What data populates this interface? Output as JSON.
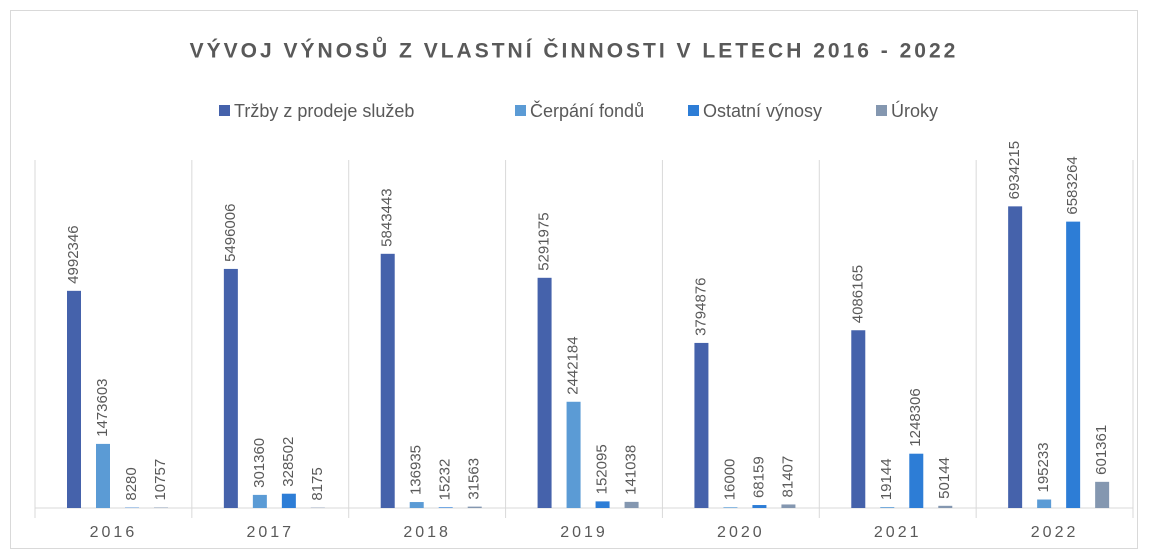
{
  "chart_data": {
    "type": "bar",
    "title": "VÝVOJ VÝNOSŮ Z VLASTNÍ ČINNOSTI V LETECH 2016 - 2022",
    "categories": [
      "2016",
      "2017",
      "2018",
      "2019",
      "2020",
      "2021",
      "2022"
    ],
    "series": [
      {
        "name": "Tržby z prodeje služeb",
        "color": "#4562ab",
        "values": [
          4992346,
          5496006,
          5843443,
          5291975,
          3794876,
          4086165,
          6934215
        ]
      },
      {
        "name": "Čerpání fondů",
        "color": "#5b9bd5",
        "values": [
          1473603,
          301360,
          136935,
          2442184,
          16000,
          19144,
          195233
        ]
      },
      {
        "name": "Ostatní výnosy",
        "color": "#2d7dd6",
        "values": [
          8280,
          328502,
          15232,
          152095,
          68159,
          1248306,
          6583264
        ]
      },
      {
        "name": "Úroky",
        "color": "#8497b0",
        "values": [
          10757,
          8175,
          31563,
          141038,
          81407,
          50144,
          601361
        ]
      }
    ],
    "ylim": [
      0,
      8000000
    ],
    "legend": "top"
  }
}
